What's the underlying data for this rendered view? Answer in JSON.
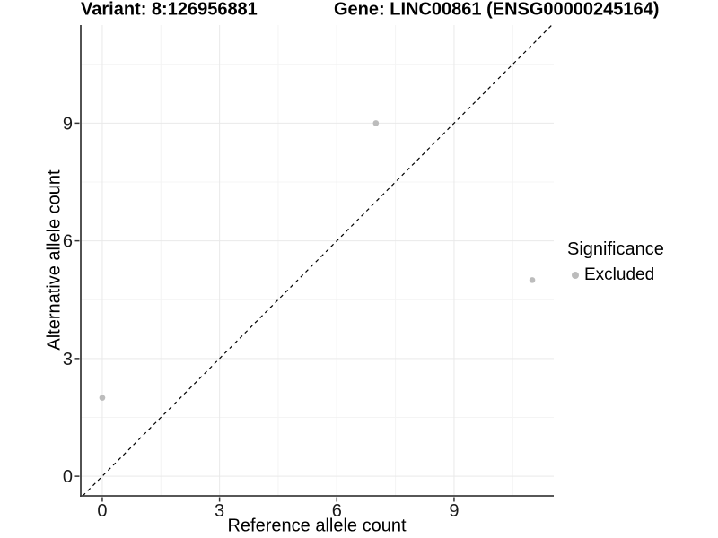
{
  "header": {
    "title_left": "Variant: 8:126956881",
    "title_right": "Gene: LINC00861 (ENSG00000245164)"
  },
  "chart_data": {
    "type": "scatter",
    "xlabel": "Reference allele count",
    "ylabel": "Alternative allele count",
    "xlim": [
      -0.55,
      11.55
    ],
    "ylim": [
      -0.5,
      11.5
    ],
    "x_major_ticks": [
      0,
      3,
      6,
      9
    ],
    "y_major_ticks": [
      0,
      3,
      6,
      9
    ],
    "x_minor_ticks": [
      1.5,
      4.5,
      7.5,
      10.5
    ],
    "y_minor_ticks": [
      1.5,
      4.5,
      7.5,
      10.5
    ],
    "grid": "major+minor",
    "legend_position": "right",
    "points": [
      {
        "x": 0,
        "y": 2,
        "significance": "Excluded"
      },
      {
        "x": 7,
        "y": 9,
        "significance": "Excluded"
      },
      {
        "x": 11,
        "y": 5,
        "significance": "Excluded"
      }
    ],
    "identity_line": {
      "slope": 1,
      "intercept": 0,
      "linetype": "dashed",
      "color": "#000000"
    },
    "point_style": {
      "color": "#bcbcbc",
      "radius": 3.3
    },
    "colors": {
      "background": "#ffffff",
      "grid_major": "#e9e9e9",
      "grid_minor": "#f4f4f4",
      "axis_line": "#3f3f3f",
      "tick_mark": "#333333",
      "tick_label": "#1a1a1a"
    }
  },
  "legend": {
    "title": "Significance",
    "items": [
      {
        "label": "Excluded",
        "color": "#bcbcbc"
      }
    ]
  }
}
